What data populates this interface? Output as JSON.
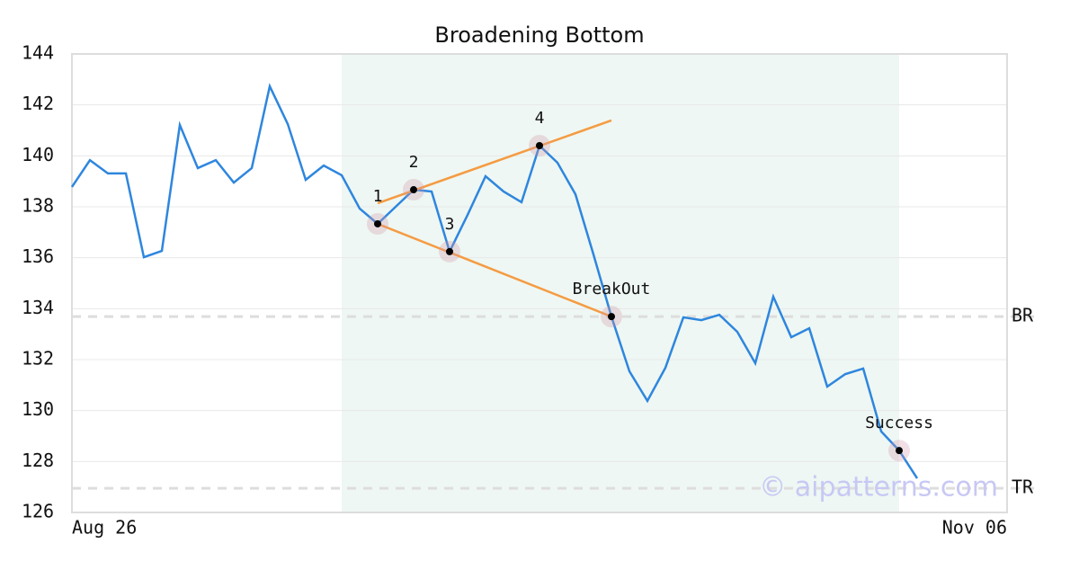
{
  "chart_data": {
    "type": "line",
    "title": "Broadening Bottom",
    "categories": [
      "Aug 26",
      null,
      null,
      null,
      null,
      null,
      null,
      null,
      null,
      null,
      null,
      null,
      null,
      null,
      null,
      null,
      null,
      null,
      null,
      null,
      null,
      null,
      null,
      null,
      null,
      null,
      null,
      null,
      null,
      null,
      null,
      null,
      null,
      null,
      null,
      null,
      null,
      null,
      null,
      null,
      null,
      null,
      null,
      null,
      null,
      null,
      null,
      null,
      null,
      null,
      null,
      null,
      "Nov 06"
    ],
    "values": [
      138.78,
      139.83,
      139.31,
      139.31,
      136.02,
      136.27,
      141.21,
      139.52,
      139.83,
      138.95,
      139.52,
      142.73,
      141.25,
      139.06,
      139.62,
      139.24,
      137.93,
      137.33,
      138.0,
      138.67,
      138.6,
      136.24,
      137.68,
      139.2,
      138.6,
      138.18,
      140.4,
      139.73,
      138.49,
      136.13,
      133.69,
      131.54,
      130.38,
      131.68,
      133.66,
      133.55,
      133.76,
      133.09,
      131.86,
      134.47,
      132.88,
      133.23,
      130.94,
      131.43,
      131.65,
      129.18,
      128.43,
      127.34,
      null,
      null,
      null,
      null,
      null
    ],
    "color": "#2e86de",
    "ylim": [
      126,
      144
    ],
    "yticks": [
      126,
      128,
      130,
      132,
      134,
      136,
      138,
      140,
      142,
      144
    ],
    "grid": true,
    "highlight": {
      "start": 15,
      "end": 46,
      "color": "#eef7f3"
    },
    "trendlines": [
      {
        "color": "#f59b42",
        "x": [
          17,
          30
        ],
        "values": [
          138.14,
          141.39
        ]
      },
      {
        "color": "#f59b42",
        "x": [
          17,
          30
        ],
        "values": [
          137.33,
          133.69
        ]
      }
    ],
    "points": [
      {
        "label": "1",
        "index": 17,
        "value": 137.33
      },
      {
        "label": "2",
        "index": 19,
        "value": 138.67
      },
      {
        "label": "3",
        "index": 21,
        "value": 136.24
      },
      {
        "label": "4",
        "index": 26,
        "value": 140.4
      },
      {
        "label": "BreakOut",
        "index": 30,
        "value": 133.69
      },
      {
        "label": "Success",
        "index": 46,
        "value": 128.43
      }
    ],
    "levels": [
      {
        "label": "BR",
        "value": 133.69
      },
      {
        "label": "TR",
        "value": 126.95
      }
    ],
    "watermark": "© aipatterns.com"
  }
}
